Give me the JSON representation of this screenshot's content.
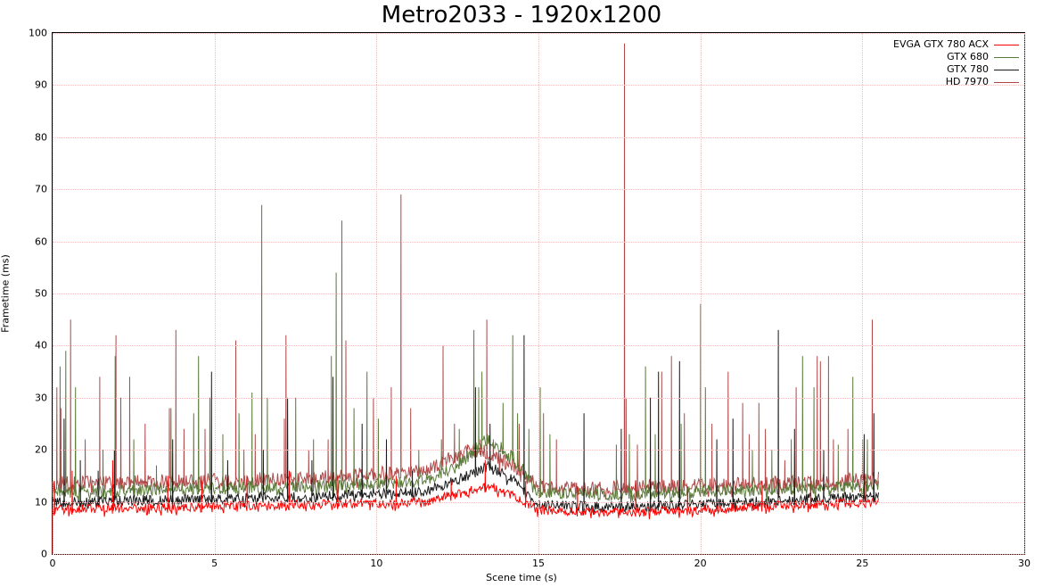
{
  "chart": {
    "type": "line",
    "title": "Metro2033 - 1920x1200",
    "title_fontsize": 26,
    "xlabel": "Scene time (s)",
    "ylabel": "Frametime (ms)",
    "label_fontsize": 11,
    "tick_fontsize": 11,
    "background_color": "#ffffff",
    "grid_color": "#f0c0c0",
    "grid_style": "dotted",
    "border_color": "#000000",
    "xlim": [
      0,
      30
    ],
    "ylim": [
      0,
      100
    ],
    "xticks": [
      0,
      5,
      10,
      15,
      20,
      25,
      30
    ],
    "yticks": [
      0,
      10,
      20,
      30,
      40,
      50,
      60,
      70,
      80,
      90,
      100
    ],
    "x_data_max": 25.5,
    "line_width": 1,
    "legend": {
      "position": "top-right",
      "fontsize": 11,
      "items": [
        {
          "label": "EVGA GTX 780 ACX",
          "color": "#ff0000"
        },
        {
          "label": "GTX 680",
          "color": "#5a7a3a"
        },
        {
          "label": "GTX 780",
          "color": "#1a1a1a"
        },
        {
          "label": "HD 7970",
          "color": "#b04a4a"
        }
      ]
    },
    "series": [
      {
        "name": "HD 7970",
        "color": "#b04a4a",
        "baseline": 14,
        "noise": 1.4,
        "spikes": [
          {
            "t": 0.12,
            "v": 32
          },
          {
            "t": 0.25,
            "v": 28
          },
          {
            "t": 0.55,
            "v": 45
          },
          {
            "t": 1.0,
            "v": 22
          },
          {
            "t": 1.45,
            "v": 34
          },
          {
            "t": 1.95,
            "v": 42
          },
          {
            "t": 2.1,
            "v": 30
          },
          {
            "t": 2.38,
            "v": 34
          },
          {
            "t": 2.85,
            "v": 25
          },
          {
            "t": 3.6,
            "v": 28
          },
          {
            "t": 3.8,
            "v": 43
          },
          {
            "t": 4.05,
            "v": 24
          },
          {
            "t": 4.7,
            "v": 24
          },
          {
            "t": 5.65,
            "v": 41
          },
          {
            "t": 5.9,
            "v": 20
          },
          {
            "t": 6.25,
            "v": 23
          },
          {
            "t": 7.15,
            "v": 26
          },
          {
            "t": 7.2,
            "v": 42
          },
          {
            "t": 7.9,
            "v": 20
          },
          {
            "t": 8.5,
            "v": 22
          },
          {
            "t": 9.05,
            "v": 41
          },
          {
            "t": 9.9,
            "v": 30
          },
          {
            "t": 10.45,
            "v": 32
          },
          {
            "t": 10.75,
            "v": 69
          },
          {
            "t": 11.05,
            "v": 28
          },
          {
            "t": 12.05,
            "v": 40
          },
          {
            "t": 12.4,
            "v": 25
          },
          {
            "t": 12.8,
            "v": 21
          },
          {
            "t": 13.2,
            "v": 22
          },
          {
            "t": 13.4,
            "v": 45
          },
          {
            "t": 13.6,
            "v": 22
          },
          {
            "t": 14.4,
            "v": 25
          },
          {
            "t": 15.15,
            "v": 27
          },
          {
            "t": 15.55,
            "v": 22
          },
          {
            "t": 17.65,
            "v": 98
          },
          {
            "t": 17.7,
            "v": 30
          },
          {
            "t": 18.05,
            "v": 21
          },
          {
            "t": 18.8,
            "v": 35
          },
          {
            "t": 19.1,
            "v": 38
          },
          {
            "t": 19.5,
            "v": 27
          },
          {
            "t": 20.35,
            "v": 25
          },
          {
            "t": 20.85,
            "v": 35
          },
          {
            "t": 21.3,
            "v": 29
          },
          {
            "t": 21.5,
            "v": 23
          },
          {
            "t": 21.8,
            "v": 29
          },
          {
            "t": 22.0,
            "v": 24
          },
          {
            "t": 22.6,
            "v": 18
          },
          {
            "t": 22.95,
            "v": 32
          },
          {
            "t": 23.6,
            "v": 38
          },
          {
            "t": 23.7,
            "v": 37
          },
          {
            "t": 23.95,
            "v": 38
          },
          {
            "t": 24.1,
            "v": 22
          },
          {
            "t": 24.55,
            "v": 24
          },
          {
            "t": 25.0,
            "v": 22
          },
          {
            "t": 25.3,
            "v": 45
          }
        ],
        "shape": [
          {
            "t": 0,
            "v": 13.5
          },
          {
            "t": 4,
            "v": 14
          },
          {
            "t": 8,
            "v": 14.5
          },
          {
            "t": 11.5,
            "v": 16
          },
          {
            "t": 12.5,
            "v": 19
          },
          {
            "t": 13.2,
            "v": 20
          },
          {
            "t": 14.2,
            "v": 17
          },
          {
            "t": 15,
            "v": 13
          },
          {
            "t": 16.5,
            "v": 12.5
          },
          {
            "t": 19,
            "v": 13
          },
          {
            "t": 22,
            "v": 13.5
          },
          {
            "t": 25.5,
            "v": 14.5
          }
        ]
      },
      {
        "name": "GTX 680",
        "color": "#5a7a3a",
        "baseline": 12,
        "noise": 1.2,
        "spikes": [
          {
            "t": 0.22,
            "v": 36
          },
          {
            "t": 0.4,
            "v": 39
          },
          {
            "t": 0.7,
            "v": 32
          },
          {
            "t": 1.55,
            "v": 20
          },
          {
            "t": 1.92,
            "v": 38
          },
          {
            "t": 2.5,
            "v": 22
          },
          {
            "t": 3.2,
            "v": 17
          },
          {
            "t": 3.65,
            "v": 28
          },
          {
            "t": 4.35,
            "v": 27
          },
          {
            "t": 4.5,
            "v": 38
          },
          {
            "t": 4.85,
            "v": 30
          },
          {
            "t": 5.25,
            "v": 23
          },
          {
            "t": 5.75,
            "v": 27
          },
          {
            "t": 6.15,
            "v": 31
          },
          {
            "t": 6.45,
            "v": 67
          },
          {
            "t": 6.62,
            "v": 30
          },
          {
            "t": 7.5,
            "v": 30
          },
          {
            "t": 8.05,
            "v": 22
          },
          {
            "t": 8.6,
            "v": 38
          },
          {
            "t": 8.75,
            "v": 54
          },
          {
            "t": 8.92,
            "v": 64
          },
          {
            "t": 9.3,
            "v": 28
          },
          {
            "t": 9.7,
            "v": 35
          },
          {
            "t": 10.05,
            "v": 26
          },
          {
            "t": 11.3,
            "v": 20
          },
          {
            "t": 12.0,
            "v": 22
          },
          {
            "t": 12.55,
            "v": 24
          },
          {
            "t": 13.0,
            "v": 43
          },
          {
            "t": 13.15,
            "v": 32
          },
          {
            "t": 13.25,
            "v": 35
          },
          {
            "t": 13.9,
            "v": 29
          },
          {
            "t": 14.2,
            "v": 42
          },
          {
            "t": 14.35,
            "v": 27
          },
          {
            "t": 14.7,
            "v": 24
          },
          {
            "t": 15.05,
            "v": 32
          },
          {
            "t": 15.35,
            "v": 23
          },
          {
            "t": 17.4,
            "v": 21
          },
          {
            "t": 17.8,
            "v": 23
          },
          {
            "t": 18.3,
            "v": 36
          },
          {
            "t": 18.6,
            "v": 23
          },
          {
            "t": 19.4,
            "v": 25
          },
          {
            "t": 20.0,
            "v": 48
          },
          {
            "t": 20.15,
            "v": 32
          },
          {
            "t": 21.6,
            "v": 20
          },
          {
            "t": 22.2,
            "v": 20
          },
          {
            "t": 22.8,
            "v": 22
          },
          {
            "t": 23.15,
            "v": 38
          },
          {
            "t": 23.5,
            "v": 32
          },
          {
            "t": 24.25,
            "v": 21
          },
          {
            "t": 24.7,
            "v": 34
          },
          {
            "t": 25.15,
            "v": 22
          }
        ],
        "shape": [
          {
            "t": 0,
            "v": 12
          },
          {
            "t": 4,
            "v": 12.5
          },
          {
            "t": 8,
            "v": 13
          },
          {
            "t": 11.5,
            "v": 14
          },
          {
            "t": 12.5,
            "v": 17
          },
          {
            "t": 13.4,
            "v": 22
          },
          {
            "t": 14.2,
            "v": 19
          },
          {
            "t": 15,
            "v": 12
          },
          {
            "t": 17,
            "v": 11.5
          },
          {
            "t": 20,
            "v": 12
          },
          {
            "t": 23,
            "v": 12.5
          },
          {
            "t": 25.5,
            "v": 13
          }
        ]
      },
      {
        "name": "GTX 780",
        "color": "#1a1a1a",
        "baseline": 10.5,
        "noise": 1.0,
        "spikes": [
          {
            "t": 0.35,
            "v": 26
          },
          {
            "t": 0.85,
            "v": 18
          },
          {
            "t": 1.4,
            "v": 16
          },
          {
            "t": 1.9,
            "v": 20
          },
          {
            "t": 3.7,
            "v": 22
          },
          {
            "t": 4.9,
            "v": 35
          },
          {
            "t": 5.4,
            "v": 18
          },
          {
            "t": 6.5,
            "v": 20
          },
          {
            "t": 7.25,
            "v": 30
          },
          {
            "t": 8.0,
            "v": 18
          },
          {
            "t": 8.65,
            "v": 34
          },
          {
            "t": 9.55,
            "v": 25
          },
          {
            "t": 10.3,
            "v": 22
          },
          {
            "t": 11.1,
            "v": 16
          },
          {
            "t": 13.05,
            "v": 32
          },
          {
            "t": 13.5,
            "v": 25
          },
          {
            "t": 14.55,
            "v": 42
          },
          {
            "t": 16.4,
            "v": 27
          },
          {
            "t": 17.55,
            "v": 24
          },
          {
            "t": 18.45,
            "v": 30
          },
          {
            "t": 18.7,
            "v": 35
          },
          {
            "t": 19.35,
            "v": 37
          },
          {
            "t": 20.5,
            "v": 22
          },
          {
            "t": 21.0,
            "v": 26
          },
          {
            "t": 22.4,
            "v": 43
          },
          {
            "t": 22.9,
            "v": 24
          },
          {
            "t": 23.8,
            "v": 20
          },
          {
            "t": 25.05,
            "v": 23
          },
          {
            "t": 25.35,
            "v": 27
          }
        ],
        "shape": [
          {
            "t": 0,
            "v": 10
          },
          {
            "t": 4,
            "v": 10.5
          },
          {
            "t": 8,
            "v": 11
          },
          {
            "t": 11.5,
            "v": 12
          },
          {
            "t": 12.8,
            "v": 15
          },
          {
            "t": 13.5,
            "v": 17
          },
          {
            "t": 14.3,
            "v": 14
          },
          {
            "t": 15,
            "v": 9.5
          },
          {
            "t": 17,
            "v": 9
          },
          {
            "t": 20,
            "v": 9.5
          },
          {
            "t": 23,
            "v": 10.5
          },
          {
            "t": 25.5,
            "v": 11
          }
        ]
      },
      {
        "name": "EVGA GTX 780 ACX",
        "color": "#ff0000",
        "baseline": 9.5,
        "noise": 0.9,
        "spikes": [
          {
            "t": 0.05,
            "v": 14
          },
          {
            "t": 0.6,
            "v": 16
          },
          {
            "t": 1.85,
            "v": 18
          },
          {
            "t": 3.55,
            "v": 15
          },
          {
            "t": 4.6,
            "v": 14
          },
          {
            "t": 6.0,
            "v": 15
          },
          {
            "t": 7.3,
            "v": 16
          },
          {
            "t": 8.8,
            "v": 15
          },
          {
            "t": 10.6,
            "v": 15
          },
          {
            "t": 12.3,
            "v": 14
          },
          {
            "t": 13.35,
            "v": 18
          },
          {
            "t": 14.6,
            "v": 14
          },
          {
            "t": 16.2,
            "v": 13
          },
          {
            "t": 18.0,
            "v": 14
          },
          {
            "t": 19.6,
            "v": 13
          },
          {
            "t": 21.9,
            "v": 14
          },
          {
            "t": 23.4,
            "v": 15
          },
          {
            "t": 25.1,
            "v": 14
          }
        ],
        "shape": [
          {
            "t": 0,
            "v": 8.5
          },
          {
            "t": 4,
            "v": 9
          },
          {
            "t": 8,
            "v": 9.5
          },
          {
            "t": 11.5,
            "v": 10
          },
          {
            "t": 12.8,
            "v": 12
          },
          {
            "t": 13.5,
            "v": 13
          },
          {
            "t": 14.3,
            "v": 11
          },
          {
            "t": 15,
            "v": 8.5
          },
          {
            "t": 17,
            "v": 8
          },
          {
            "t": 20,
            "v": 8.5
          },
          {
            "t": 23,
            "v": 9.5
          },
          {
            "t": 25.5,
            "v": 10
          }
        ]
      }
    ]
  }
}
